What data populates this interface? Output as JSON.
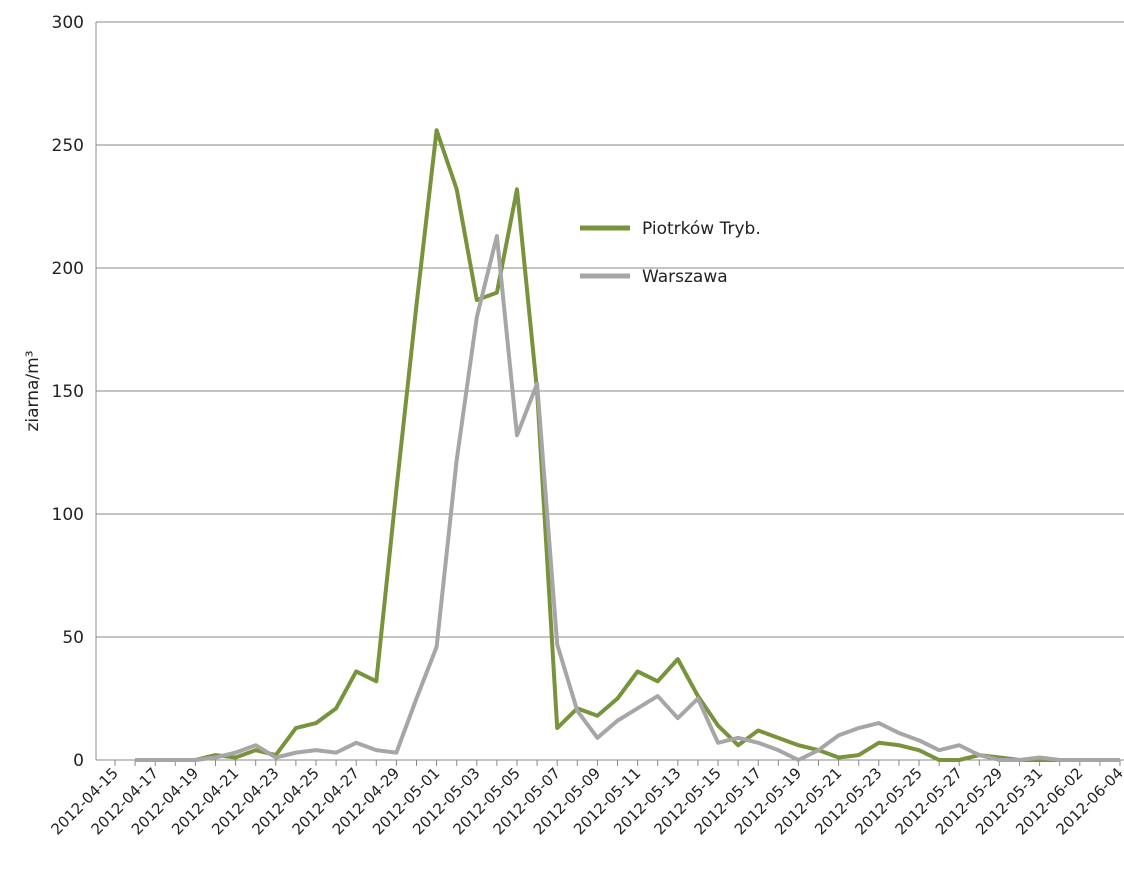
{
  "chart_data": {
    "type": "line",
    "y_label": "ziarna/m³",
    "categories": [
      "2012-04-15",
      null,
      "2012-04-17",
      null,
      "2012-04-19",
      null,
      "2012-04-21",
      null,
      "2012-04-23",
      null,
      "2012-04-25",
      null,
      "2012-04-27",
      null,
      "2012-04-29",
      null,
      "2012-05-01",
      null,
      "2012-05-03",
      null,
      "2012-05-05",
      null,
      "2012-05-07",
      null,
      "2012-05-09",
      null,
      "2012-05-11",
      null,
      "2012-05-13",
      null,
      "2012-05-15",
      null,
      "2012-05-17",
      null,
      "2012-05-19",
      null,
      "2012-05-21",
      null,
      "2012-05-23",
      null,
      "2012-05-25",
      null,
      "2012-05-27",
      null,
      "2012-05-29",
      null,
      "2012-05-31",
      null,
      "2012-06-02",
      null,
      "2012-06-04"
    ],
    "series": [
      {
        "name": "Piotrków Tryb.",
        "color": "#77933c",
        "values": [
          null,
          0,
          0,
          0,
          0,
          2,
          1,
          4,
          2,
          13,
          15,
          21,
          36,
          32,
          110,
          185,
          256,
          232,
          187,
          190,
          232,
          150,
          13,
          21,
          18,
          25,
          36,
          32,
          41,
          26,
          14,
          6,
          12,
          9,
          6,
          4,
          1,
          2,
          7,
          6,
          4,
          0,
          0,
          2,
          1,
          0,
          0,
          0,
          0,
          0,
          0
        ]
      },
      {
        "name": "Warszawa",
        "color": "#a6a6a6",
        "values": [
          null,
          0,
          0,
          0,
          0,
          1,
          3,
          6,
          1,
          3,
          4,
          3,
          7,
          4,
          3,
          25,
          46,
          122,
          180,
          213,
          132,
          153,
          47,
          20,
          9,
          16,
          21,
          26,
          17,
          25,
          7,
          9,
          7,
          4,
          0,
          4,
          10,
          13,
          15,
          11,
          8,
          4,
          6,
          2,
          0,
          0,
          1,
          0,
          0,
          0,
          0
        ]
      }
    ],
    "ylim": [
      0,
      300
    ],
    "yticks": [
      0,
      50,
      100,
      150,
      200,
      250,
      300
    ],
    "grid": true
  }
}
